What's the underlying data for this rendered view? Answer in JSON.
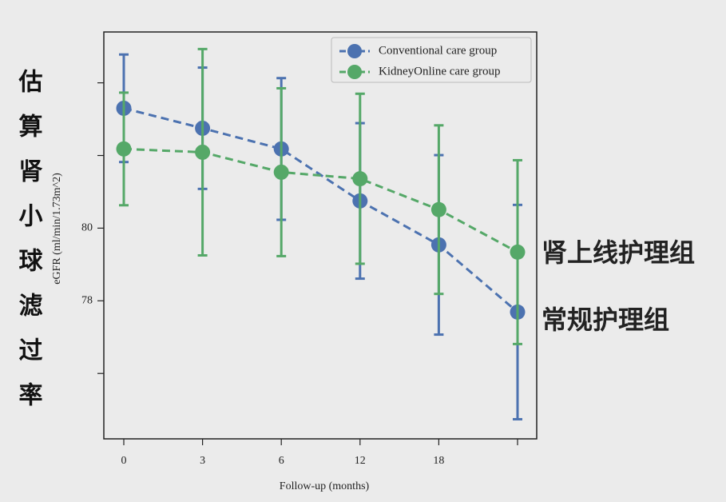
{
  "chart_data": {
    "type": "errorbar-line",
    "side_title": "估算肾小球滤过率",
    "x_label": "Follow-up (months)",
    "y_label": "eGFR (ml/min/1.73m^2)",
    "categories": [
      "0",
      "3",
      "6",
      "12",
      "18",
      null
    ],
    "ylim": [
      74.2,
      85.4
    ],
    "yticks": [
      {
        "value": 84,
        "label": null
      },
      {
        "value": 82,
        "label": null
      },
      80,
      78,
      {
        "value": 76,
        "label": null
      }
    ],
    "legend": "upper right",
    "series": [
      {
        "name": "Conventional care group",
        "color": "#4c72b0",
        "values": [
          83.3,
          82.75,
          82.18,
          80.75,
          79.54,
          77.69
        ],
        "errors": [
          1.48,
          1.67,
          1.95,
          2.14,
          2.47,
          2.95
        ]
      },
      {
        "name": "KidneyOnline care group",
        "color": "#55a868",
        "values": [
          82.18,
          82.09,
          81.54,
          81.36,
          80.51,
          79.34
        ],
        "errors": [
          1.55,
          2.84,
          2.31,
          2.34,
          2.32,
          2.53
        ]
      }
    ],
    "annotations": [
      {
        "text": "肾上线护理组",
        "color": "#55a868"
      },
      {
        "text": "常规护理组",
        "color": "#4c72b0"
      }
    ]
  }
}
